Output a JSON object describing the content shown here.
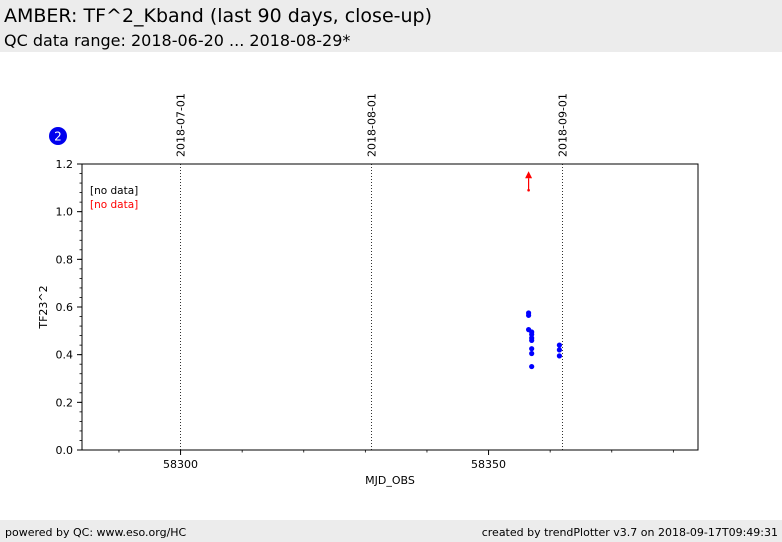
{
  "header": {
    "title": "AMBER: TF^2_Kband (last 90 days, close-up)",
    "subtitle": "QC data range: 2018-06-20 ... 2018-08-29*"
  },
  "footer": {
    "left": "powered by QC: www.eso.org/HC",
    "right": "created by trendPlotter v3.7 on 2018-09-17T09:49:31"
  },
  "badge": "2",
  "chart_data": {
    "type": "scatter",
    "xlabel": "MJD_OBS",
    "ylabel": "TF23^2",
    "xlim": [
      58284,
      58384
    ],
    "ylim": [
      0,
      1.2
    ],
    "xticks": [
      58300,
      58350
    ],
    "yticks": [
      0.0,
      0.2,
      0.4,
      0.6,
      0.8,
      1.0,
      1.2
    ],
    "ytick_labels": [
      "0.0",
      "0.2",
      "0.4",
      "0.6",
      "0.8",
      "1.0",
      "1.2"
    ],
    "date_markers": [
      {
        "label": "2018-07-01",
        "x": 58300
      },
      {
        "label": "2018-08-01",
        "x": 58331
      },
      {
        "label": "2018-09-01",
        "x": 58362
      }
    ],
    "no_data_labels": [
      {
        "text": "[no data]",
        "color": "#000000"
      },
      {
        "text": "[no data]",
        "color": "#ff0000"
      }
    ],
    "series": [
      {
        "color": "#0000ff",
        "points": [
          [
            58356.5,
            0.575
          ],
          [
            58356.5,
            0.565
          ],
          [
            58356.5,
            0.505
          ],
          [
            58357.0,
            0.495
          ],
          [
            58357.0,
            0.485
          ],
          [
            58357.0,
            0.47
          ],
          [
            58357.0,
            0.46
          ],
          [
            58357.0,
            0.425
          ],
          [
            58357.0,
            0.405
          ],
          [
            58357.0,
            0.35
          ],
          [
            58361.5,
            0.44
          ],
          [
            58361.5,
            0.42
          ],
          [
            58361.5,
            0.395
          ]
        ]
      }
    ],
    "outliers": [
      {
        "color": "#ff0000",
        "x": 58356.5,
        "y": 1.09,
        "direction": "up"
      }
    ]
  }
}
